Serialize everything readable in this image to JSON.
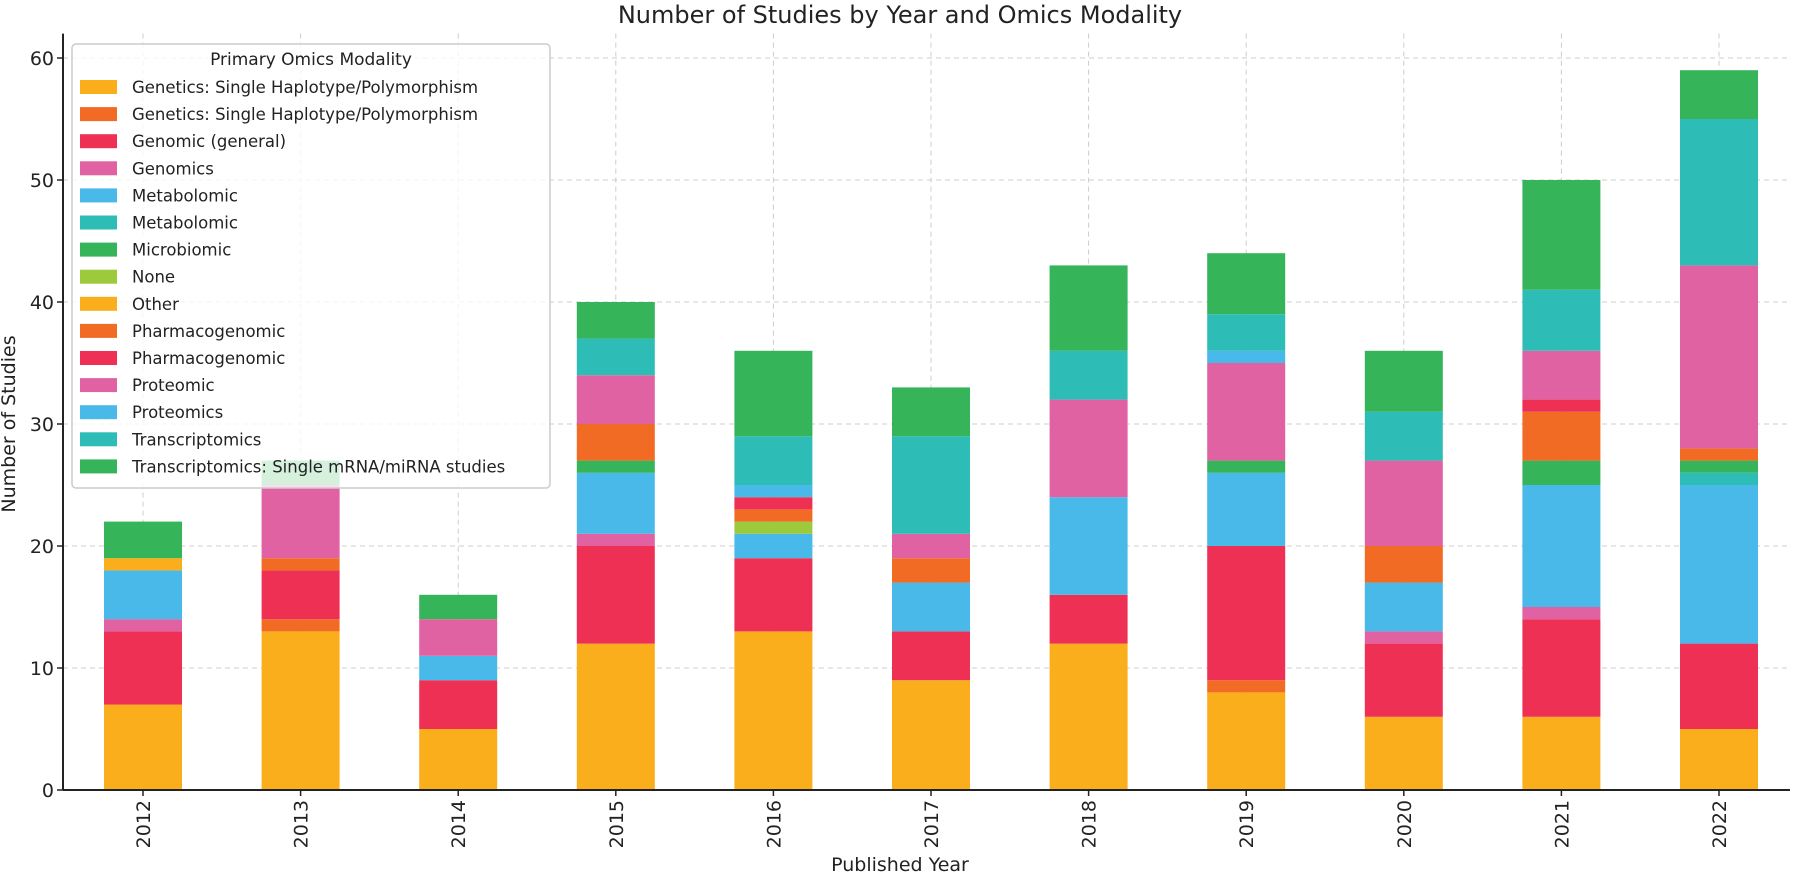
{
  "chart_data": {
    "type": "bar",
    "stacked": true,
    "title": "Number of Studies by Year and Omics Modality",
    "xlabel": "Published Year",
    "ylabel": "Number of Studies",
    "ylim": [
      0,
      62
    ],
    "yticks": [
      0,
      10,
      20,
      30,
      40,
      50,
      60
    ],
    "grid": true,
    "legend_title": "Primary Omics Modality",
    "legend_placement": "top-left",
    "categories": [
      "2012",
      "2013",
      "2014",
      "2015",
      "2016",
      "2017",
      "2018",
      "2019",
      "2020",
      "2021",
      "2022"
    ],
    "series": [
      {
        "name": "Genetics: Single Haplotype/Polymorphism",
        "color": "#FBAE1C",
        "values": [
          7,
          13,
          5,
          12,
          13,
          9,
          12,
          8,
          6,
          6,
          5
        ]
      },
      {
        "name": "Genetics: Single Haplotype/Polymorphism",
        "color": "#F26B25",
        "values": [
          0,
          1,
          0,
          0,
          0,
          0,
          0,
          1,
          0,
          0,
          0
        ]
      },
      {
        "name": "Genomic (general)",
        "color": "#EE3054",
        "values": [
          6,
          4,
          4,
          8,
          6,
          4,
          4,
          11,
          6,
          8,
          7
        ]
      },
      {
        "name": "Genomics",
        "color": "#E062A2",
        "values": [
          1,
          0,
          0,
          1,
          0,
          0,
          0,
          0,
          1,
          1,
          0
        ]
      },
      {
        "name": "Metabolomic",
        "color": "#49B9E9",
        "values": [
          4,
          0,
          2,
          5,
          2,
          4,
          8,
          6,
          4,
          10,
          13
        ]
      },
      {
        "name": "Metabolomic",
        "color": "#2EBDB6",
        "values": [
          0,
          0,
          0,
          0,
          0,
          0,
          0,
          0,
          0,
          0,
          1
        ]
      },
      {
        "name": "Microbiomic",
        "color": "#36B45A",
        "values": [
          0,
          0,
          0,
          1,
          0,
          0,
          0,
          1,
          0,
          2,
          1
        ]
      },
      {
        "name": "None",
        "color": "#9DCA3C",
        "values": [
          0,
          0,
          0,
          0,
          1,
          0,
          0,
          0,
          0,
          0,
          0
        ]
      },
      {
        "name": "Other",
        "color": "#FBAE1C",
        "values": [
          1,
          0,
          0,
          0,
          0,
          0,
          0,
          0,
          0,
          0,
          0
        ]
      },
      {
        "name": "Pharmacogenomic",
        "color": "#F26B25",
        "values": [
          0,
          1,
          0,
          3,
          1,
          2,
          0,
          0,
          3,
          4,
          1
        ]
      },
      {
        "name": "Pharmacogenomic",
        "color": "#EE3054",
        "values": [
          0,
          0,
          0,
          0,
          1,
          0,
          0,
          0,
          0,
          1,
          0
        ]
      },
      {
        "name": "Proteomic",
        "color": "#E062A2",
        "values": [
          0,
          6,
          3,
          4,
          0,
          2,
          8,
          8,
          7,
          4,
          15
        ]
      },
      {
        "name": "Proteomics",
        "color": "#49B9E9",
        "values": [
          0,
          0,
          0,
          0,
          1,
          0,
          0,
          1,
          0,
          0,
          0
        ]
      },
      {
        "name": "Transcriptomics",
        "color": "#2EBDB6",
        "values": [
          0,
          0,
          0,
          3,
          4,
          8,
          4,
          3,
          4,
          5,
          12
        ]
      },
      {
        "name": "Transcriptomics: Single mRNA/miRNA studies",
        "color": "#36B45A",
        "values": [
          3,
          2,
          2,
          3,
          7,
          4,
          7,
          5,
          5,
          9,
          4
        ]
      }
    ]
  }
}
